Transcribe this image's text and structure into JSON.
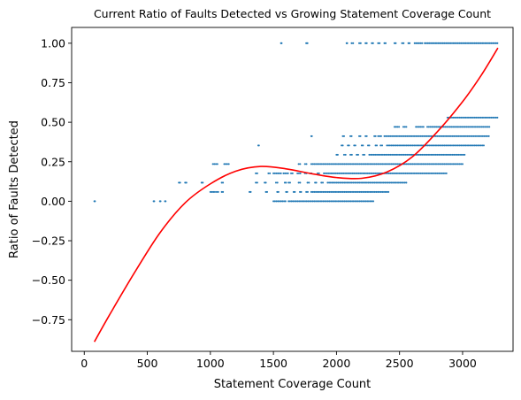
{
  "chart_data": {
    "type": "scatter",
    "title": "Current Ratio of Faults Detected vs Growing Statement Coverage Count",
    "xlabel": "Statement Coverage Count",
    "ylabel": "Ratio of Faults Detected",
    "xlim": [
      -100,
      3400
    ],
    "ylim": [
      -0.95,
      1.1
    ],
    "xticks": [
      0,
      500,
      1000,
      1500,
      2000,
      2500,
      3000
    ],
    "xtick_labels": [
      "0",
      "500",
      "1000",
      "1500",
      "2000",
      "2500",
      "3000"
    ],
    "yticks": [
      -0.75,
      -0.5,
      -0.25,
      0.0,
      0.25,
      0.5,
      0.75,
      1.0
    ],
    "ytick_labels": [
      "−0.75",
      "−0.50",
      "−0.25",
      "0.00",
      "0.25",
      "0.50",
      "0.75",
      "1.00"
    ],
    "grid": false,
    "legend": "none",
    "scatter_color": "#1f77b4",
    "fit_color": "#ff0000",
    "scatter_bands": [
      {
        "y": 1.0,
        "x_ranges": [
          [
            1560,
            1565
          ],
          [
            1760,
            1770
          ],
          [
            2080,
            2085
          ],
          [
            2120,
            2140
          ],
          [
            2180,
            2200
          ],
          [
            2230,
            2240
          ],
          [
            2280,
            2290
          ],
          [
            2330,
            2350
          ],
          [
            2380,
            2390
          ],
          [
            2460,
            2470
          ],
          [
            2520,
            2540
          ],
          [
            2570,
            2580
          ],
          [
            2620,
            2680
          ],
          [
            2700,
            3280
          ]
        ]
      },
      {
        "y": 0.5294,
        "x_ranges": [
          [
            2880,
            3280
          ]
        ]
      },
      {
        "y": 0.4706,
        "x_ranges": [
          [
            2460,
            2500
          ],
          [
            2530,
            2560
          ],
          [
            2630,
            2700
          ],
          [
            2720,
            3220
          ]
        ]
      },
      {
        "y": 0.4118,
        "x_ranges": [
          [
            1800,
            1805
          ],
          [
            2050,
            2060
          ],
          [
            2110,
            2120
          ],
          [
            2180,
            2190
          ],
          [
            2230,
            2240
          ],
          [
            2300,
            2310
          ],
          [
            2330,
            2360
          ],
          [
            2380,
            3210
          ]
        ]
      },
      {
        "y": 0.3529,
        "x_ranges": [
          [
            1380,
            1385
          ],
          [
            2040,
            2050
          ],
          [
            2090,
            2100
          ],
          [
            2140,
            2150
          ],
          [
            2200,
            2210
          ],
          [
            2250,
            2260
          ],
          [
            2310,
            2320
          ],
          [
            2350,
            2370
          ],
          [
            2400,
            3170
          ]
        ]
      },
      {
        "y": 0.2941,
        "x_ranges": [
          [
            2000,
            2010
          ],
          [
            2060,
            2080
          ],
          [
            2110,
            2130
          ],
          [
            2160,
            2180
          ],
          [
            2210,
            2230
          ],
          [
            2260,
            3020
          ]
        ]
      },
      {
        "y": 0.2353,
        "x_ranges": [
          [
            1020,
            1060
          ],
          [
            1110,
            1150
          ],
          [
            1700,
            1720
          ],
          [
            1750,
            1770
          ],
          [
            1800,
            3000
          ]
        ]
      },
      {
        "y": 0.1765,
        "x_ranges": [
          [
            1360,
            1380
          ],
          [
            1460,
            1480
          ],
          [
            1500,
            1560
          ],
          [
            1580,
            1620
          ],
          [
            1640,
            1660
          ],
          [
            1690,
            1720
          ],
          [
            1750,
            1770
          ],
          [
            1790,
            1810
          ],
          [
            1850,
            1870
          ],
          [
            1900,
            1950
          ],
          [
            1960,
            2880
          ]
        ]
      },
      {
        "y": 0.1176,
        "x_ranges": [
          [
            750,
            760
          ],
          [
            800,
            810
          ],
          [
            930,
            940
          ],
          [
            1090,
            1100
          ],
          [
            1360,
            1380
          ],
          [
            1430,
            1440
          ],
          [
            1520,
            1540
          ],
          [
            1590,
            1600
          ],
          [
            1620,
            1640
          ],
          [
            1700,
            1720
          ],
          [
            1770,
            1790
          ],
          [
            1830,
            1840
          ],
          [
            1880,
            1900
          ],
          [
            1930,
            2560
          ]
        ]
      },
      {
        "y": 0.0588,
        "x_ranges": [
          [
            1000,
            1040
          ],
          [
            1050,
            1070
          ],
          [
            1090,
            1100
          ],
          [
            1310,
            1320
          ],
          [
            1440,
            1450
          ],
          [
            1530,
            1540
          ],
          [
            1600,
            1610
          ],
          [
            1660,
            1670
          ],
          [
            1710,
            1720
          ],
          [
            1760,
            1780
          ],
          [
            1800,
            2420
          ]
        ]
      },
      {
        "y": 0.0,
        "x_ranges": [
          [
            80,
            85
          ],
          [
            550,
            555
          ],
          [
            600,
            605
          ],
          [
            640,
            645
          ],
          [
            1500,
            1600
          ],
          [
            1620,
            2300
          ]
        ]
      }
    ],
    "fit_curve": {
      "type": "polynomial",
      "points": [
        [
          80,
          -0.89
        ],
        [
          200,
          -0.72
        ],
        [
          400,
          -0.45
        ],
        [
          600,
          -0.2
        ],
        [
          800,
          -0.01
        ],
        [
          1000,
          0.11
        ],
        [
          1200,
          0.19
        ],
        [
          1400,
          0.22
        ],
        [
          1600,
          0.205
        ],
        [
          1800,
          0.175
        ],
        [
          2000,
          0.15
        ],
        [
          2200,
          0.145
        ],
        [
          2400,
          0.185
        ],
        [
          2600,
          0.28
        ],
        [
          2800,
          0.44
        ],
        [
          3000,
          0.63
        ],
        [
          3150,
          0.8
        ],
        [
          3280,
          0.97
        ]
      ]
    }
  }
}
